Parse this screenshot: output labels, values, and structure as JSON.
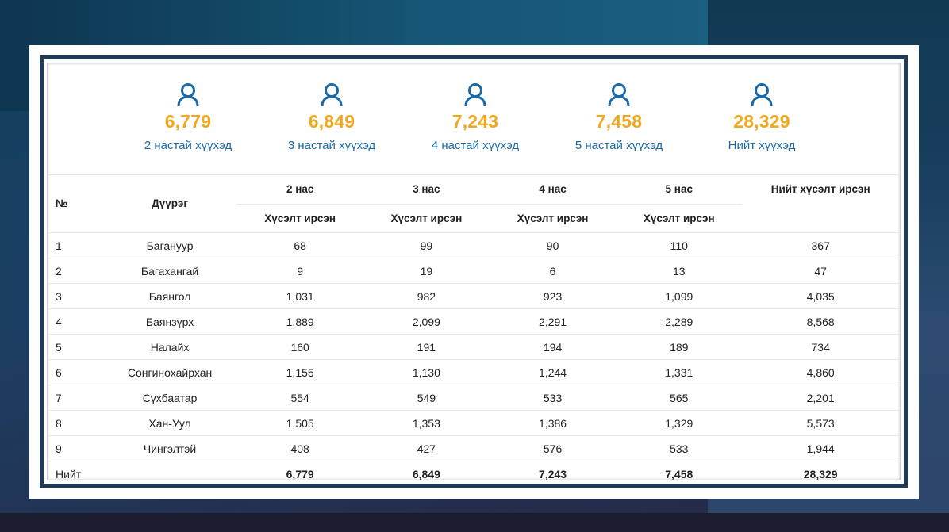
{
  "stats": [
    {
      "value": "6,779",
      "label": "2 настай хүүхэд"
    },
    {
      "value": "6,849",
      "label": "3 настай хүүхэд"
    },
    {
      "value": "7,243",
      "label": "4 настай хүүхэд"
    },
    {
      "value": "7,458",
      "label": "5 настай хүүхэд"
    },
    {
      "value": "28,329",
      "label": "Нийт хүүхэд"
    }
  ],
  "colors": {
    "accent": "#f0a81c",
    "label": "#1b6aa8",
    "icon": "#1b6aa8",
    "frame": "#1f3b57"
  },
  "table": {
    "header": {
      "no": "№",
      "district": "Дүүрэг",
      "age2": "2 нас",
      "age3": "3 нас",
      "age4": "4 нас",
      "age5": "5 нас",
      "total": "Нийт хүсэлт ирсэн",
      "sub": "Хүсэлт ирсэн"
    },
    "rows": [
      {
        "no": "1",
        "district": "Багануур",
        "a2": "68",
        "a3": "99",
        "a4": "90",
        "a5": "110",
        "total": "367"
      },
      {
        "no": "2",
        "district": "Багахангай",
        "a2": "9",
        "a3": "19",
        "a4": "6",
        "a5": "13",
        "total": "47"
      },
      {
        "no": "3",
        "district": "Баянгол",
        "a2": "1,031",
        "a3": "982",
        "a4": "923",
        "a5": "1,099",
        "total": "4,035"
      },
      {
        "no": "4",
        "district": "Баянзүрх",
        "a2": "1,889",
        "a3": "2,099",
        "a4": "2,291",
        "a5": "2,289",
        "total": "8,568"
      },
      {
        "no": "5",
        "district": "Налайх",
        "a2": "160",
        "a3": "191",
        "a4": "194",
        "a5": "189",
        "total": "734"
      },
      {
        "no": "6",
        "district": "Сонгинохайрхан",
        "a2": "1,155",
        "a3": "1,130",
        "a4": "1,244",
        "a5": "1,331",
        "total": "4,860"
      },
      {
        "no": "7",
        "district": "Сүхбаатар",
        "a2": "554",
        "a3": "549",
        "a4": "533",
        "a5": "565",
        "total": "2,201"
      },
      {
        "no": "8",
        "district": "Хан-Уул",
        "a2": "1,505",
        "a3": "1,353",
        "a4": "1,386",
        "a5": "1,329",
        "total": "5,573"
      },
      {
        "no": "9",
        "district": "Чингэлтэй",
        "a2": "408",
        "a3": "427",
        "a4": "576",
        "a5": "533",
        "total": "1,944"
      }
    ],
    "footer": {
      "label": "Нийт",
      "a2": "6,779",
      "a3": "6,849",
      "a4": "7,243",
      "a5": "7,458",
      "total": "28,329"
    }
  }
}
